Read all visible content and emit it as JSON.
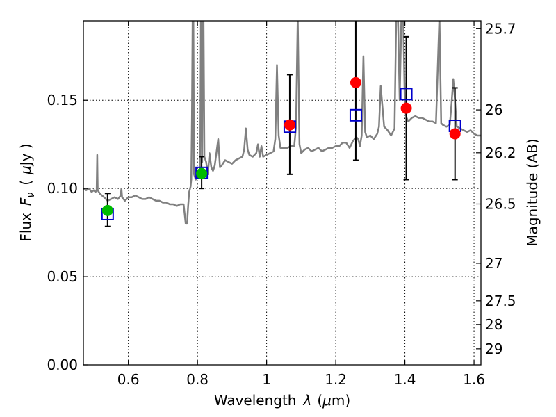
{
  "chart_data": {
    "type": "scatter",
    "xlabel": {
      "prefix": "Wavelength",
      "symbol": "λ",
      "unit_open": "(",
      "unit_mu": "μ",
      "unit_rest": "m)"
    },
    "ylabel": {
      "prefix": "Flux",
      "symbol": "F",
      "subscript": "ν",
      "unit_open": "(",
      "unit_mu": "μ",
      "unit_rest": "Jy )"
    },
    "y2label": "Magnitude (AB)",
    "xlim": [
      0.47,
      1.62
    ],
    "ylim": [
      0.0,
      0.195
    ],
    "grid": true,
    "x_ticks": [
      {
        "value": 0.6,
        "label": "0.6"
      },
      {
        "value": 0.8,
        "label": "0.8"
      },
      {
        "value": 1.0,
        "label": "1"
      },
      {
        "value": 1.2,
        "label": "1.2"
      },
      {
        "value": 1.4,
        "label": "1.4"
      },
      {
        "value": 1.6,
        "label": "1.6"
      }
    ],
    "y_ticks": [
      {
        "value": 0.0,
        "label": "0.00"
      },
      {
        "value": 0.05,
        "label": "0.05"
      },
      {
        "value": 0.1,
        "label": "0.10"
      },
      {
        "value": 0.15,
        "label": "0.15"
      }
    ],
    "y2_ticks": [
      {
        "value": 25.7,
        "label": "25.7"
      },
      {
        "value": 26.0,
        "label": "26"
      },
      {
        "value": 26.2,
        "label": "26.2"
      },
      {
        "value": 26.5,
        "label": "26.5"
      },
      {
        "value": 27.0,
        "label": "27"
      },
      {
        "value": 27.5,
        "label": "27.5"
      },
      {
        "value": 28.0,
        "label": "28"
      },
      {
        "value": 29.0,
        "label": "29"
      }
    ],
    "sed_model": {
      "color": "#808080",
      "points": [
        [
          0.47,
          0.1
        ],
        [
          0.478,
          0.099
        ],
        [
          0.486,
          0.1
        ],
        [
          0.494,
          0.098
        ],
        [
          0.5,
          0.099
        ],
        [
          0.505,
          0.098
        ],
        [
          0.5085,
          0.099
        ],
        [
          0.51,
          0.119
        ],
        [
          0.5115,
          0.099
        ],
        [
          0.518,
          0.097
        ],
        [
          0.53,
          0.095
        ],
        [
          0.54,
          0.093
        ],
        [
          0.55,
          0.094
        ],
        [
          0.56,
          0.095
        ],
        [
          0.57,
          0.094
        ],
        [
          0.578,
          0.096
        ],
        [
          0.58,
          0.1
        ],
        [
          0.582,
          0.095
        ],
        [
          0.59,
          0.093
        ],
        [
          0.6,
          0.095
        ],
        [
          0.61,
          0.095
        ],
        [
          0.62,
          0.096
        ],
        [
          0.63,
          0.095
        ],
        [
          0.64,
          0.094
        ],
        [
          0.65,
          0.094
        ],
        [
          0.66,
          0.095
        ],
        [
          0.67,
          0.094
        ],
        [
          0.68,
          0.093
        ],
        [
          0.69,
          0.093
        ],
        [
          0.7,
          0.092
        ],
        [
          0.71,
          0.092
        ],
        [
          0.72,
          0.091
        ],
        [
          0.73,
          0.091
        ],
        [
          0.74,
          0.09
        ],
        [
          0.75,
          0.091
        ],
        [
          0.76,
          0.091
        ],
        [
          0.766,
          0.08
        ],
        [
          0.77,
          0.08
        ],
        [
          0.773,
          0.09
        ],
        [
          0.776,
          0.098
        ],
        [
          0.78,
          0.101
        ],
        [
          0.782,
          0.105
        ],
        [
          0.784,
          0.14
        ],
        [
          0.786,
          0.198
        ],
        [
          0.788,
          0.198
        ],
        [
          0.79,
          0.108
        ],
        [
          0.795,
          0.105
        ],
        [
          0.8,
          0.108
        ],
        [
          0.805,
          0.11
        ],
        [
          0.808,
          0.112
        ],
        [
          0.81,
          0.198
        ],
        [
          0.812,
          0.198
        ],
        [
          0.8135,
          0.115
        ],
        [
          0.815,
          0.198
        ],
        [
          0.8175,
          0.198
        ],
        [
          0.82,
          0.118
        ],
        [
          0.825,
          0.115
        ],
        [
          0.83,
          0.108
        ],
        [
          0.835,
          0.12
        ],
        [
          0.84,
          0.112
        ],
        [
          0.845,
          0.11
        ],
        [
          0.85,
          0.113
        ],
        [
          0.86,
          0.128
        ],
        [
          0.865,
          0.112
        ],
        [
          0.87,
          0.113
        ],
        [
          0.88,
          0.116
        ],
        [
          0.89,
          0.115
        ],
        [
          0.9,
          0.114
        ],
        [
          0.91,
          0.116
        ],
        [
          0.92,
          0.117
        ],
        [
          0.93,
          0.118
        ],
        [
          0.935,
          0.122
        ],
        [
          0.94,
          0.134
        ],
        [
          0.945,
          0.122
        ],
        [
          0.95,
          0.119
        ],
        [
          0.96,
          0.118
        ],
        [
          0.97,
          0.12
        ],
        [
          0.975,
          0.125
        ],
        [
          0.98,
          0.118
        ],
        [
          0.985,
          0.124
        ],
        [
          0.99,
          0.118
        ],
        [
          1.0,
          0.119
        ],
        [
          1.01,
          0.12
        ],
        [
          1.02,
          0.121
        ],
        [
          1.025,
          0.128
        ],
        [
          1.03,
          0.17
        ],
        [
          1.035,
          0.13
        ],
        [
          1.04,
          0.123
        ],
        [
          1.05,
          0.123
        ],
        [
          1.06,
          0.123
        ],
        [
          1.07,
          0.124
        ],
        [
          1.08,
          0.124
        ],
        [
          1.085,
          0.135
        ],
        [
          1.09,
          0.198
        ],
        [
          1.095,
          0.125
        ],
        [
          1.1,
          0.12
        ],
        [
          1.11,
          0.122
        ],
        [
          1.12,
          0.123
        ],
        [
          1.13,
          0.121
        ],
        [
          1.14,
          0.122
        ],
        [
          1.15,
          0.123
        ],
        [
          1.16,
          0.121
        ],
        [
          1.17,
          0.122
        ],
        [
          1.18,
          0.123
        ],
        [
          1.19,
          0.123
        ],
        [
          1.2,
          0.124
        ],
        [
          1.21,
          0.124
        ],
        [
          1.22,
          0.126
        ],
        [
          1.23,
          0.126
        ],
        [
          1.24,
          0.123
        ],
        [
          1.25,
          0.127
        ],
        [
          1.26,
          0.129
        ],
        [
          1.265,
          0.128
        ],
        [
          1.27,
          0.124
        ],
        [
          1.275,
          0.13
        ],
        [
          1.28,
          0.175
        ],
        [
          1.285,
          0.132
        ],
        [
          1.29,
          0.129
        ],
        [
          1.3,
          0.13
        ],
        [
          1.31,
          0.128
        ],
        [
          1.32,
          0.131
        ],
        [
          1.325,
          0.135
        ],
        [
          1.33,
          0.158
        ],
        [
          1.34,
          0.135
        ],
        [
          1.35,
          0.133
        ],
        [
          1.36,
          0.13
        ],
        [
          1.37,
          0.134
        ],
        [
          1.375,
          0.198
        ],
        [
          1.38,
          0.198
        ],
        [
          1.385,
          0.15
        ],
        [
          1.39,
          0.198
        ],
        [
          1.395,
          0.198
        ],
        [
          1.4,
          0.145
        ],
        [
          1.405,
          0.14
        ],
        [
          1.41,
          0.138
        ],
        [
          1.42,
          0.14
        ],
        [
          1.43,
          0.141
        ],
        [
          1.44,
          0.14
        ],
        [
          1.45,
          0.14
        ],
        [
          1.46,
          0.139
        ],
        [
          1.47,
          0.138
        ],
        [
          1.48,
          0.138
        ],
        [
          1.49,
          0.137
        ],
        [
          1.5,
          0.198
        ],
        [
          1.505,
          0.137
        ],
        [
          1.51,
          0.136
        ],
        [
          1.52,
          0.135
        ],
        [
          1.53,
          0.136
        ],
        [
          1.535,
          0.148
        ],
        [
          1.54,
          0.162
        ],
        [
          1.545,
          0.15
        ],
        [
          1.55,
          0.135
        ],
        [
          1.56,
          0.134
        ],
        [
          1.57,
          0.133
        ],
        [
          1.58,
          0.132
        ],
        [
          1.59,
          0.133
        ],
        [
          1.6,
          0.131
        ],
        [
          1.61,
          0.13
        ],
        [
          1.62,
          0.13
        ]
      ]
    },
    "model_fluxes": {
      "marker": "square",
      "color": "#0000cc",
      "points": [
        {
          "x": 0.54,
          "y": 0.0855
        },
        {
          "x": 0.812,
          "y": 0.1088
        },
        {
          "x": 1.067,
          "y": 0.135
        },
        {
          "x": 1.258,
          "y": 0.1415
        },
        {
          "x": 1.404,
          "y": 0.1535
        },
        {
          "x": 1.545,
          "y": 0.1355
        }
      ]
    },
    "errorbars": {
      "color": "#000000",
      "points": [
        {
          "x": 0.54,
          "low": 0.0785,
          "high": 0.0972
        },
        {
          "x": 0.812,
          "low": 0.1,
          "high": 0.118
        },
        {
          "x": 1.067,
          "low": 0.108,
          "high": 0.1645
        },
        {
          "x": 1.258,
          "low": 0.116,
          "high": 0.195
        },
        {
          "x": 1.404,
          "low": 0.105,
          "high": 0.186
        },
        {
          "x": 1.545,
          "low": 0.105,
          "high": 0.157
        }
      ]
    },
    "observed_points": [
      {
        "x": 0.54,
        "y": 0.0875,
        "color": "#00bb00"
      },
      {
        "x": 0.812,
        "y": 0.1085,
        "color": "#00bb00"
      },
      {
        "x": 1.067,
        "y": 0.136,
        "color": "#ff0000"
      },
      {
        "x": 1.258,
        "y": 0.16,
        "color": "#ff0000"
      },
      {
        "x": 1.404,
        "y": 0.1455,
        "color": "#ff0000"
      },
      {
        "x": 1.545,
        "y": 0.131,
        "color": "#ff0000"
      }
    ]
  }
}
